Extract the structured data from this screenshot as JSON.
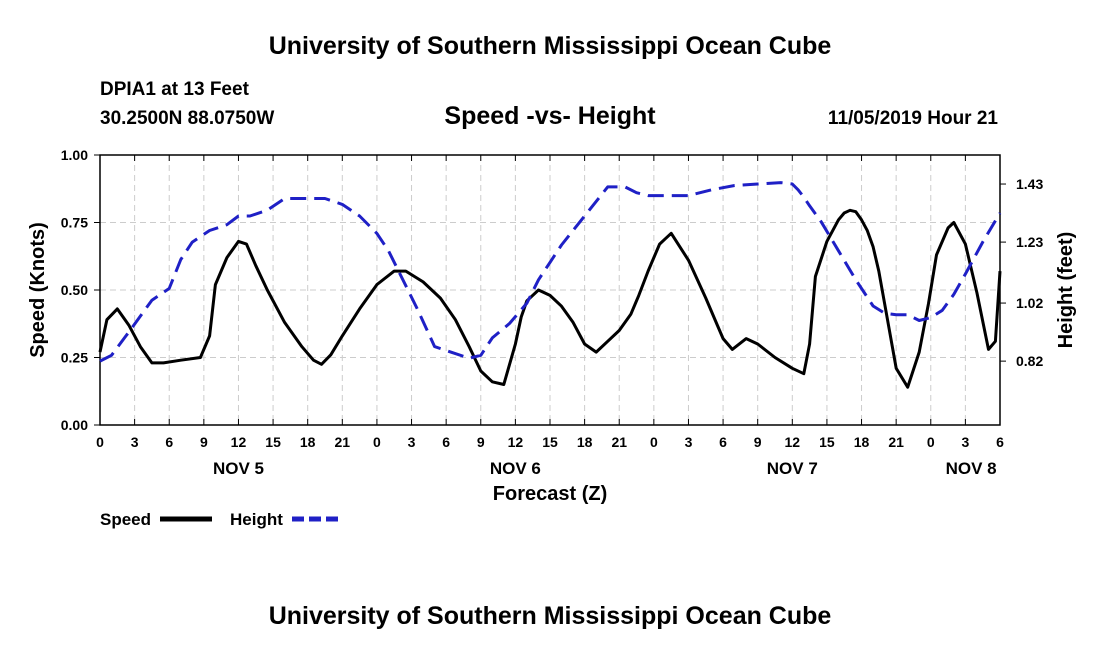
{
  "page": {
    "title_top": "University of Southern Mississippi Ocean Cube",
    "title_bottom": "University of Southern Mississippi Ocean Cube",
    "station": "DPIA1 at 13 Feet",
    "coords": "30.2500N 88.0750W",
    "issued": "11/05/2019 Hour 21"
  },
  "chart_data": {
    "type": "line",
    "title": "Speed -vs- Height",
    "xlabel": "Forecast (Z)",
    "ylabel": "Speed (Knots)",
    "ylabel_right": "Height (feet)",
    "x_unit": "forecast hour from NOV 5 00Z",
    "xlim": [
      0,
      78
    ],
    "ylim": [
      0,
      1
    ],
    "ylim_right": [
      0.6,
      1.53
    ],
    "x_ticks": [
      0,
      3,
      6,
      9,
      12,
      15,
      18,
      21,
      24,
      27,
      30,
      33,
      36,
      39,
      42,
      45,
      48,
      51,
      54,
      57,
      60,
      63,
      66,
      69,
      72,
      75,
      78
    ],
    "x_tick_labels": [
      "0",
      "3",
      "6",
      "9",
      "12",
      "15",
      "18",
      "21",
      "0",
      "3",
      "6",
      "9",
      "12",
      "15",
      "18",
      "21",
      "0",
      "3",
      "6",
      "9",
      "12",
      "15",
      "18",
      "21",
      "0",
      "3",
      "6"
    ],
    "y_ticks": [
      0.0,
      0.25,
      0.5,
      0.75,
      1.0
    ],
    "y_tick_labels": [
      "0.00",
      "0.25",
      "0.50",
      "0.75",
      "1.00"
    ],
    "y_ticks_right": [
      0.82,
      1.02,
      1.23,
      1.43
    ],
    "y_tick_labels_right": [
      "0.82",
      "1.02",
      "1.23",
      "1.43"
    ],
    "dates": [
      {
        "label": "NOV 5",
        "x": 12
      },
      {
        "label": "NOV 6",
        "x": 36
      },
      {
        "label": "NOV 7",
        "x": 60
      },
      {
        "label": "NOV 8",
        "x": 75.5
      }
    ],
    "grid": true,
    "legend_position": "bottom-left",
    "series": [
      {
        "name": "Speed",
        "axis": "left",
        "color": "#000000",
        "style": "solid",
        "x": [
          0,
          0.6,
          1.5,
          2.5,
          3.5,
          4.5,
          5.5,
          7,
          8.7,
          9.5,
          10,
          11,
          12,
          12.7,
          13.5,
          14.5,
          16,
          17.5,
          18.5,
          19.2,
          20,
          21,
          22.5,
          24,
          25.5,
          26.5,
          28,
          29.5,
          30.8,
          32,
          33,
          34,
          35,
          36,
          36.5,
          37,
          38,
          39,
          40,
          41,
          42,
          43,
          44,
          45,
          46,
          46.7,
          47.5,
          48.5,
          49,
          49.5,
          51,
          52.5,
          53.5,
          54,
          54.8,
          56,
          57,
          58.5,
          60,
          61,
          61.5,
          62,
          63,
          64,
          64.5,
          65,
          65.5,
          66,
          66.5,
          67,
          67.5,
          68,
          69,
          70,
          71,
          71.8,
          72.5,
          73.5,
          74,
          75,
          76,
          77,
          77.6,
          78
        ],
        "y": [
          0.27,
          0.39,
          0.43,
          0.37,
          0.29,
          0.23,
          0.23,
          0.24,
          0.25,
          0.33,
          0.52,
          0.62,
          0.68,
          0.67,
          0.59,
          0.5,
          0.38,
          0.29,
          0.24,
          0.225,
          0.26,
          0.33,
          0.43,
          0.52,
          0.57,
          0.57,
          0.53,
          0.47,
          0.39,
          0.29,
          0.2,
          0.16,
          0.15,
          0.3,
          0.4,
          0.46,
          0.5,
          0.48,
          0.44,
          0.38,
          0.3,
          0.27,
          0.31,
          0.35,
          0.41,
          0.48,
          0.57,
          0.67,
          0.69,
          0.71,
          0.61,
          0.47,
          0.37,
          0.32,
          0.28,
          0.32,
          0.3,
          0.25,
          0.21,
          0.19,
          0.3,
          0.55,
          0.68,
          0.76,
          0.785,
          0.795,
          0.79,
          0.76,
          0.72,
          0.66,
          0.57,
          0.45,
          0.21,
          0.14,
          0.27,
          0.45,
          0.63,
          0.73,
          0.75,
          0.67,
          0.49,
          0.28,
          0.31,
          0.57
        ]
      },
      {
        "name": "Height",
        "axis": "right",
        "color": "#1f20c6",
        "style": "dashed",
        "x": [
          0,
          1,
          2.5,
          4.5,
          6,
          7,
          8,
          9.5,
          11,
          12,
          13,
          14.5,
          16,
          18,
          19.5,
          21,
          22.5,
          24,
          25,
          26,
          27.5,
          29,
          30.5,
          32,
          33,
          34,
          35.5,
          37,
          38,
          39,
          40,
          42,
          44,
          45.5,
          46.5,
          47.5,
          49,
          50,
          51,
          53,
          55,
          57,
          59,
          60,
          60.5,
          61,
          61.5,
          62.5,
          64,
          65.5,
          67,
          68,
          69,
          70,
          71,
          72,
          73,
          74,
          75,
          76.5,
          78
        ],
        "y": [
          0.82,
          0.84,
          0.92,
          1.03,
          1.07,
          1.17,
          1.23,
          1.27,
          1.29,
          1.32,
          1.32,
          1.34,
          1.38,
          1.38,
          1.38,
          1.36,
          1.32,
          1.26,
          1.2,
          1.12,
          1.0,
          0.87,
          0.85,
          0.83,
          0.84,
          0.9,
          0.95,
          1.02,
          1.1,
          1.16,
          1.22,
          1.32,
          1.42,
          1.42,
          1.4,
          1.39,
          1.39,
          1.39,
          1.39,
          1.41,
          1.425,
          1.43,
          1.435,
          1.43,
          1.41,
          1.385,
          1.355,
          1.3,
          1.2,
          1.1,
          1.01,
          0.985,
          0.98,
          0.98,
          0.96,
          0.97,
          0.995,
          1.05,
          1.12,
          1.23,
          1.33
        ]
      }
    ]
  }
}
